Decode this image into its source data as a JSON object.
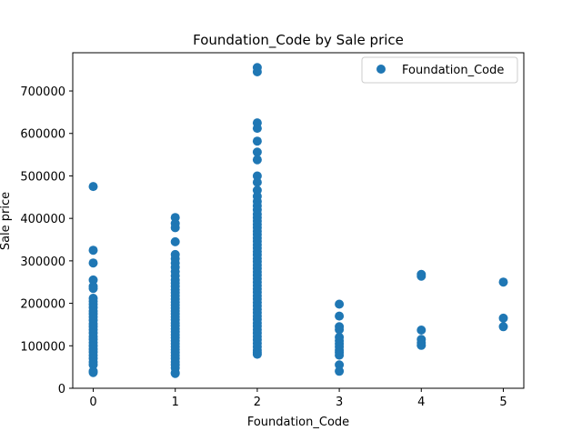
{
  "chart_data": {
    "type": "scatter",
    "title": "Foundation_Code by Sale price",
    "xlabel": "Foundation_Code",
    "ylabel": "Sale price",
    "xlim": [
      -0.25,
      5.25
    ],
    "ylim": [
      0,
      790000
    ],
    "x_ticks": [
      0,
      1,
      2,
      3,
      4,
      5
    ],
    "x_tick_labels": [
      "0",
      "1",
      "2",
      "3",
      "4",
      "5"
    ],
    "y_ticks": [
      0,
      100000,
      200000,
      300000,
      400000,
      500000,
      600000,
      700000
    ],
    "y_tick_labels": [
      "0",
      "100000",
      "200000",
      "300000",
      "400000",
      "500000",
      "600000",
      "700000"
    ],
    "grid": false,
    "legend_position": "top-right",
    "series": [
      {
        "name": "Foundation_Code",
        "color": "#1f77b4",
        "points": [
          [
            0,
            475000
          ],
          [
            0,
            325000
          ],
          [
            0,
            295000
          ],
          [
            0,
            255000
          ],
          [
            0,
            240000
          ],
          [
            0,
            235000
          ],
          [
            0,
            212000
          ],
          [
            0,
            205000
          ],
          [
            0,
            198000
          ],
          [
            0,
            190000
          ],
          [
            0,
            182000
          ],
          [
            0,
            175000
          ],
          [
            0,
            168000
          ],
          [
            0,
            160000
          ],
          [
            0,
            152000
          ],
          [
            0,
            145000
          ],
          [
            0,
            138000
          ],
          [
            0,
            130000
          ],
          [
            0,
            122000
          ],
          [
            0,
            115000
          ],
          [
            0,
            108000
          ],
          [
            0,
            100000
          ],
          [
            0,
            92000
          ],
          [
            0,
            85000
          ],
          [
            0,
            78000
          ],
          [
            0,
            70000
          ],
          [
            0,
            62000
          ],
          [
            0,
            55000
          ],
          [
            0,
            40000
          ],
          [
            0,
            37000
          ],
          [
            1,
            402000
          ],
          [
            1,
            388000
          ],
          [
            1,
            378000
          ],
          [
            1,
            345000
          ],
          [
            1,
            315000
          ],
          [
            1,
            305000
          ],
          [
            1,
            295000
          ],
          [
            1,
            285000
          ],
          [
            1,
            275000
          ],
          [
            1,
            265000
          ],
          [
            1,
            255000
          ],
          [
            1,
            248000
          ],
          [
            1,
            240000
          ],
          [
            1,
            232000
          ],
          [
            1,
            225000
          ],
          [
            1,
            218000
          ],
          [
            1,
            210000
          ],
          [
            1,
            203000
          ],
          [
            1,
            196000
          ],
          [
            1,
            189000
          ],
          [
            1,
            182000
          ],
          [
            1,
            175000
          ],
          [
            1,
            168000
          ],
          [
            1,
            161000
          ],
          [
            1,
            154000
          ],
          [
            1,
            147000
          ],
          [
            1,
            140000
          ],
          [
            1,
            133000
          ],
          [
            1,
            126000
          ],
          [
            1,
            119000
          ],
          [
            1,
            112000
          ],
          [
            1,
            105000
          ],
          [
            1,
            98000
          ],
          [
            1,
            91000
          ],
          [
            1,
            84000
          ],
          [
            1,
            77000
          ],
          [
            1,
            70000
          ],
          [
            1,
            62000
          ],
          [
            1,
            55000
          ],
          [
            1,
            48000
          ],
          [
            1,
            37000
          ],
          [
            1,
            35000
          ],
          [
            2,
            755000
          ],
          [
            2,
            745000
          ],
          [
            2,
            625000
          ],
          [
            2,
            612000
          ],
          [
            2,
            582000
          ],
          [
            2,
            556000
          ],
          [
            2,
            538000
          ],
          [
            2,
            500000
          ],
          [
            2,
            485000
          ],
          [
            2,
            466000
          ],
          [
            2,
            452000
          ],
          [
            2,
            440000
          ],
          [
            2,
            430000
          ],
          [
            2,
            420000
          ],
          [
            2,
            410000
          ],
          [
            2,
            402000
          ],
          [
            2,
            394000
          ],
          [
            2,
            386000
          ],
          [
            2,
            378000
          ],
          [
            2,
            370000
          ],
          [
            2,
            362000
          ],
          [
            2,
            354000
          ],
          [
            2,
            346000
          ],
          [
            2,
            338000
          ],
          [
            2,
            330000
          ],
          [
            2,
            322000
          ],
          [
            2,
            314000
          ],
          [
            2,
            306000
          ],
          [
            2,
            298000
          ],
          [
            2,
            290000
          ],
          [
            2,
            282000
          ],
          [
            2,
            274000
          ],
          [
            2,
            266000
          ],
          [
            2,
            258000
          ],
          [
            2,
            250000
          ],
          [
            2,
            242000
          ],
          [
            2,
            234000
          ],
          [
            2,
            226000
          ],
          [
            2,
            218000
          ],
          [
            2,
            210000
          ],
          [
            2,
            202000
          ],
          [
            2,
            194000
          ],
          [
            2,
            186000
          ],
          [
            2,
            178000
          ],
          [
            2,
            170000
          ],
          [
            2,
            162000
          ],
          [
            2,
            154000
          ],
          [
            2,
            146000
          ],
          [
            2,
            138000
          ],
          [
            2,
            130000
          ],
          [
            2,
            122000
          ],
          [
            2,
            114000
          ],
          [
            2,
            106000
          ],
          [
            2,
            98000
          ],
          [
            2,
            90000
          ],
          [
            2,
            84000
          ],
          [
            2,
            80000
          ],
          [
            3,
            198000
          ],
          [
            3,
            170000
          ],
          [
            3,
            145000
          ],
          [
            3,
            138000
          ],
          [
            3,
            120000
          ],
          [
            3,
            112000
          ],
          [
            3,
            105000
          ],
          [
            3,
            98000
          ],
          [
            3,
            90000
          ],
          [
            3,
            84000
          ],
          [
            3,
            78000
          ],
          [
            3,
            55000
          ],
          [
            3,
            40000
          ],
          [
            4,
            268000
          ],
          [
            4,
            264000
          ],
          [
            4,
            137000
          ],
          [
            4,
            115000
          ],
          [
            4,
            107000
          ],
          [
            4,
            101000
          ],
          [
            5,
            250000
          ],
          [
            5,
            165000
          ],
          [
            5,
            145000
          ]
        ]
      }
    ]
  }
}
